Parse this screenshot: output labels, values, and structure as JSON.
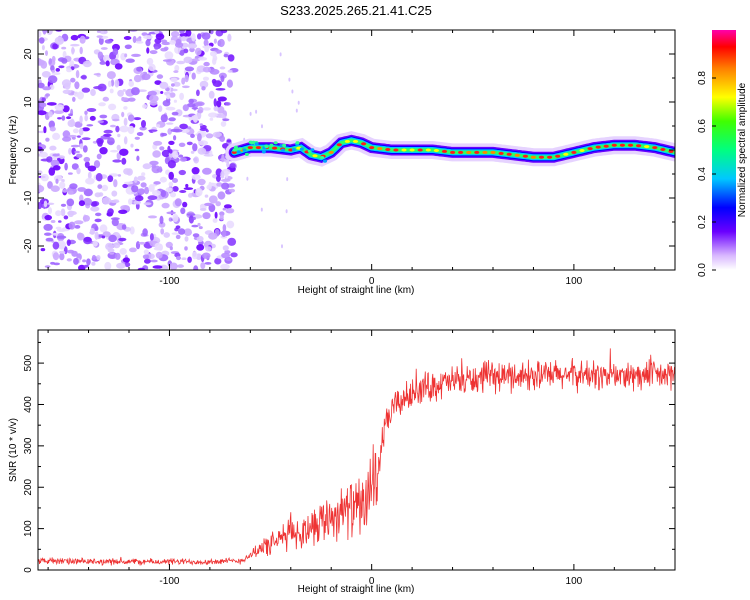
{
  "title": "S233.2025.265.21.41.C25",
  "colors": {
    "snr_line": "#ee3333",
    "noise_blob": "#8a2be2",
    "axis": "#000000"
  },
  "chart_data": [
    {
      "type": "heatmap",
      "panel": "spectrogram",
      "title": "",
      "xlabel": "Height of straight line (km)",
      "ylabel": "Frequency (Hz)",
      "xlim": [
        -165,
        150
      ],
      "ylim": [
        -25,
        25
      ],
      "xticks": [
        -100,
        0,
        100
      ],
      "yticks": [
        -20,
        -10,
        0,
        10,
        20
      ],
      "noise_region_x": [
        -165,
        -68
      ],
      "signal_start_x": -68,
      "carrier_track": {
        "x": [
          -68,
          -60,
          -50,
          -40,
          -35,
          -30,
          -25,
          -20,
          -15,
          -10,
          -5,
          0,
          10,
          20,
          30,
          40,
          50,
          60,
          70,
          80,
          90,
          100,
          110,
          120,
          130,
          140,
          150
        ],
        "freq": [
          -0.5,
          0.5,
          0.5,
          0,
          0.5,
          -1,
          -1.5,
          -0.5,
          1.5,
          2,
          1.5,
          0.5,
          0,
          0,
          0,
          -0.5,
          -0.5,
          -0.5,
          -1,
          -1.5,
          -1.5,
          -0.5,
          0.5,
          1,
          1,
          0.5,
          -0.5
        ]
      },
      "colorbar": {
        "label": "Normalized spectral amplitude",
        "range": [
          0,
          1
        ],
        "ticks": [
          "0.0",
          "0.2",
          "0.4",
          "0.6",
          "0.8"
        ]
      }
    },
    {
      "type": "line",
      "panel": "snr",
      "title": "",
      "xlabel": "Height of straight line (km)",
      "ylabel": "SNR (10 * v/v)",
      "xlim": [
        -165,
        150
      ],
      "ylim": [
        0,
        580
      ],
      "xticks": [
        -100,
        0,
        100
      ],
      "yticks": [
        0,
        100,
        200,
        300,
        400,
        500
      ],
      "series": [
        {
          "name": "SNR",
          "x": [
            -165,
            -140,
            -120,
            -100,
            -80,
            -65,
            -60,
            -55,
            -50,
            -45,
            -40,
            -35,
            -30,
            -25,
            -20,
            -15,
            -10,
            -5,
            0,
            3,
            5,
            8,
            10,
            15,
            20,
            25,
            30,
            40,
            50,
            60,
            70,
            80,
            90,
            100,
            110,
            120,
            130,
            140,
            150
          ],
          "values": [
            22,
            20,
            20,
            20,
            20,
            22,
            35,
            55,
            60,
            75,
            95,
            85,
            110,
            120,
            130,
            140,
            150,
            155,
            175,
            230,
            310,
            360,
            390,
            410,
            425,
            440,
            445,
            455,
            460,
            465,
            470,
            470,
            470,
            472,
            470,
            470,
            468,
            470,
            470
          ]
        }
      ]
    }
  ]
}
